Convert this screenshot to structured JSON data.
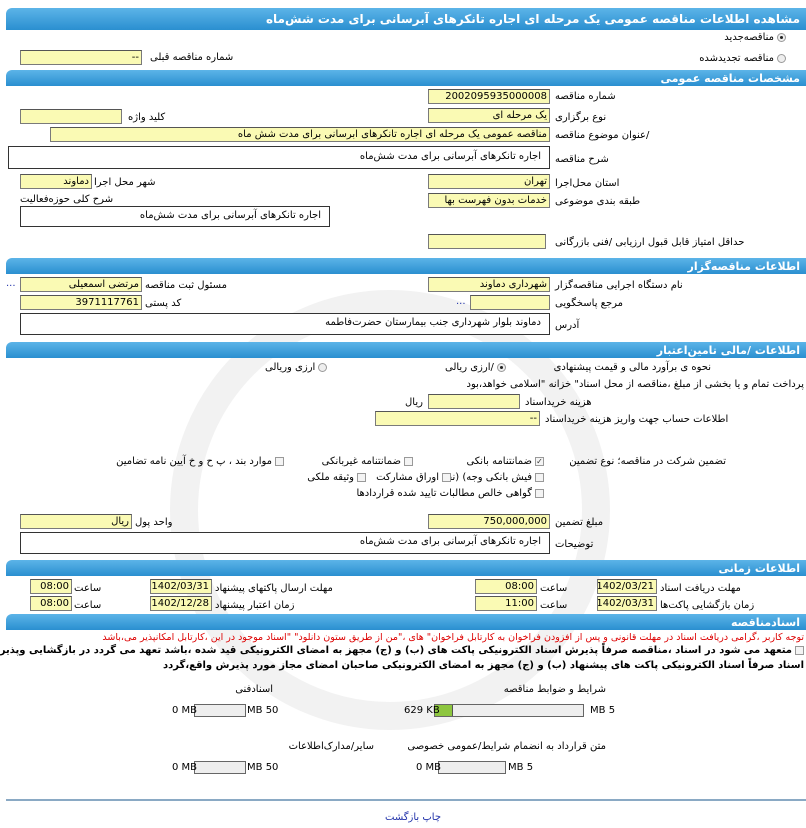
{
  "title": "مشاهده اطلاعات مناقصه  عمومی یک  مرحله ای اجاره تانکرهای آبرسانی برای مدت شش‌ماه",
  "tender_kind": {
    "new": "مناقصه‌جدید",
    "renewed": "مناقصه تجدیدشده",
    "selected": "new",
    "prev_number_label": "شماره  مناقصه قبلی",
    "prev_number": "--"
  },
  "general": {
    "header": "مشخصات مناقصه عمومی",
    "number_label": "شماره مناقصه",
    "number": "2002095935000008",
    "type_label": "نوع برگزاری",
    "type": "یک مرحله ای",
    "keyword_label": "کلید واژه",
    "keyword": "",
    "subject_label": "/عنوان  موضوع مناقصه",
    "subject": "مناقصه عمومی یک مرحله ای اجاره تانکرهای ابرسانی برای مدت شش ماه",
    "desc_label": "شرح مناقصه",
    "desc": "اجاره  تانکرهای  آبرسانی  برای مدت شش‌ماه",
    "province_label": "استان محل‌اجرا",
    "province": "تهران",
    "city_label": "شهر محل اجرا",
    "city": "دماوند",
    "category_label": "طبقه  بندی  موضوعی",
    "category": "خدمات بدون فهرست بها",
    "activity_label": "شرح  کلی  حوزه‌فعالیت",
    "activity": "اجاره  تانکرهای  آبرسانی  برای مدت شش‌ماه",
    "min_score_label": "حداقل  امتیاز قابل  قبول  ارزیابی /فنی بازرگانی",
    "min_score": ""
  },
  "organizer": {
    "header": "اطلاعات مناقصه‌گزار",
    "org_label": "نام  دستگاه  اجرایی  مناقصه‌گزار",
    "org": "شهرداری دماوند",
    "resp_label": "مسئول  ثبت مناقصه",
    "resp": "مرتضی اسمعیلی",
    "more": "...",
    "ref_label": "مرجع پاسخگویی",
    "ref": "",
    "postal_label": "کد  پستی",
    "postal": "3971117761",
    "address_label": "آدرس",
    "address": "دماوند  بلوار   شهرداری  جنب   بیمارستان  حضرت‌فاطمه"
  },
  "finance": {
    "header": "اطلاعات /مالی تامین‌اعتبار",
    "estimate_label": "نحوه ی برآورد مالی و قیمت پیشنهادی",
    "rial": "/ارزی ریالی",
    "fx_rial": "ارزی وریالی",
    "selected": "rial",
    "payment_note": "پرداخت تمام و یا  بخشی از مبلغ  ،مناقصه از محل اسناد\" خزانه \"اسلامی خواهد،بود",
    "doc_cost_label": "هزینه خریداسناد",
    "doc_cost": "",
    "doc_cost_unit": "ریال",
    "account_label": "اطلاعات حساب جهت واریز  هزینه خریداسناد",
    "account": "--",
    "guarantee_label": "تضمین شرکت در  مناقصه؛   نوع     تضمین",
    "guarantee_options": [
      {
        "label": "ضمانتنامه  بانکی",
        "checked": true
      },
      {
        "label": "ضمانتنامه  غیربانکی",
        "checked": false
      },
      {
        "label": "موارد  بند ، پ ح و خ آیین نامه تضامین",
        "checked": false
      },
      {
        "label": "فیش  بانکی وجه) (نقد",
        "checked": false
      },
      {
        "label": "اوراق  مشارکت",
        "checked": false
      },
      {
        "label": "وثیقه ملکی",
        "checked": false
      },
      {
        "label": "گواهی  خالص مطالبات تایید شده قراردادها",
        "checked": false
      }
    ],
    "amount_label": "مبلغ تضمین",
    "amount": "750,000,000",
    "currency_label": "واحد پول",
    "currency": "ریال",
    "notes_label": "توضیحات",
    "notes": "اجاره  تانکرهای  آبرسانی  برای مدت شش‌ماه"
  },
  "timing": {
    "header": "اطلاعات زمانی",
    "doc_deadline_label": "مهلت  دریافت اسناد",
    "doc_deadline_date": "1402/03/21",
    "time_label": "ساعت",
    "doc_deadline_time": "08:00",
    "submit_label": "مهلت     ارسال  پاکتهای پیشنهاد",
    "submit_date": "1402/03/31",
    "submit_time": "08:00",
    "open_label": "زمان  بازگشایی پاکت‌ها",
    "open_date": "1402/03/31",
    "open_time": "11:00",
    "validity_label": "زمان     اعتبار پیشنهاد",
    "validity_date": "1402/12/28",
    "validity_time": "08:00"
  },
  "documents": {
    "header": "اسنادمناقصه",
    "warning": "توجه کاربر ،گرامی دریافت اسناد در مهلت قانونی و پس از افزودن فراخوان به کارتابل فراخوان\" های ،\"من از طریق ستون دانلود\" \"اسناد موجود در این ،کارتابل امکانپذیر می،باشد",
    "commit1": "متعهد می شود در اسناد ،مناقصه صرفاً پذیرش اسناد الکترونیکی پاکت های (ب) و (ج) مجهز به امضای الکترونیکی قید شده ،باشد تعهد می گردد در بازگشایی وپذیرش",
    "commit2": "اسناد صرفاً اسناد الکترونیکی پاکت های پیشنهاد (ب) و (ج) مجهز به امضای الکترونیکی صاحبان امضای مجاز مورد پذیرش واقع،گردد",
    "files": [
      {
        "label": "شرایط و  ضوابط مناقصه",
        "used": "629 KB",
        "max": "5 MB",
        "fraction": 0.12
      },
      {
        "label": "اسنادفنی",
        "used": "0 MB",
        "max": "50 MB",
        "fraction": 0
      },
      {
        "label": "متن قرارداد به  انضمام شرایط/عمومی خصوصی",
        "used": "0 MB",
        "max": "5 MB",
        "fraction": 0
      },
      {
        "label": "سایر/مدارک‌اطلاعات",
        "used": "0 MB",
        "max": "50 MB",
        "fraction": 0
      }
    ]
  },
  "footer": {
    "print": "چاپ",
    "back": "بازگشت"
  }
}
